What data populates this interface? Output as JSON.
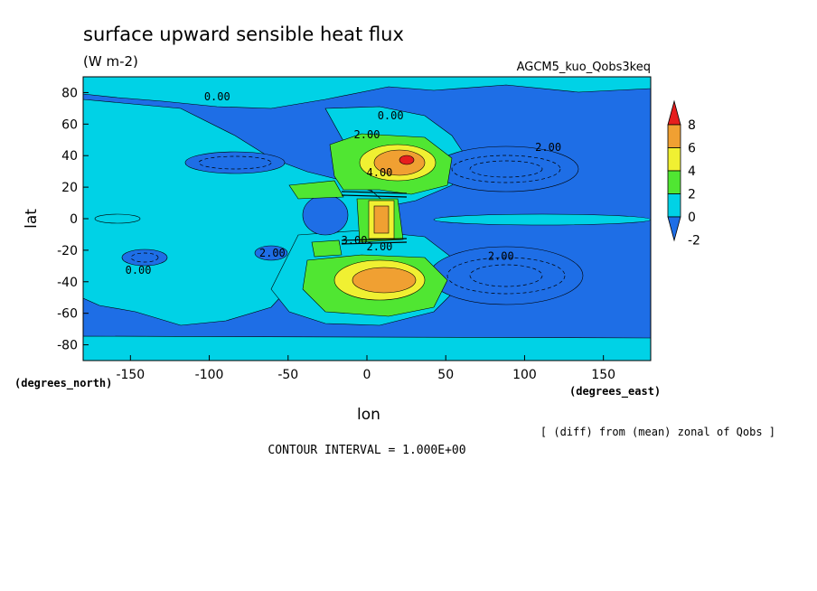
{
  "chart_data": {
    "type": "heatmap",
    "title": "surface upward sensible heat flux",
    "subtitle": "(W m-2)",
    "run_label": "AGCM5_kuo_Qobs3keq",
    "xlabel": "lon",
    "ylabel": "lat",
    "x_units": "(degrees_east)",
    "y_units": "(degrees_north)",
    "xlim": [
      -180,
      180
    ],
    "ylim": [
      -90,
      90
    ],
    "x_ticks": [
      -150,
      -100,
      -50,
      0,
      50,
      100,
      150
    ],
    "x_tick_labels": [
      "-150",
      "-100",
      "-50",
      "0",
      "50",
      "100",
      "150"
    ],
    "y_ticks": [
      80,
      60,
      40,
      20,
      0,
      -20,
      -40,
      -60,
      -80
    ],
    "y_tick_labels": [
      "80",
      "60",
      "40",
      "20",
      "0",
      "-20",
      "-40",
      "-60",
      "-80"
    ],
    "colorbar": {
      "levels": [
        -2,
        0,
        2,
        4,
        6,
        8
      ],
      "level_labels": [
        "-2",
        "0",
        "2",
        "4",
        "6",
        "8"
      ],
      "colors": [
        "#1e6ee6",
        "#00d2e6",
        "#50e632",
        "#f0f032",
        "#f0a032",
        "#e61e1e"
      ]
    },
    "contour_labels": [
      {
        "text": "0.00",
        "lon": -95,
        "lat": 75
      },
      {
        "text": "0.00",
        "lon": 15,
        "lat": 63
      },
      {
        "text": "2.00",
        "lon": 0,
        "lat": 51
      },
      {
        "text": "2.00",
        "lon": 115,
        "lat": 43
      },
      {
        "text": "4.00",
        "lon": 8,
        "lat": 27
      },
      {
        "text": "2.00",
        "lon": -60,
        "lat": -24
      },
      {
        "text": "3.00",
        "lon": -8,
        "lat": -16
      },
      {
        "text": "2.00",
        "lon": 8,
        "lat": -20
      },
      {
        "text": "2.00",
        "lon": 85,
        "lat": -26
      },
      {
        "text": "0.00",
        "lon": -145,
        "lat": -35
      }
    ],
    "footer_note": "[ (diff) from (mean) zonal of Qobs ]",
    "contour_interval": "CONTOUR INTERVAL = 1.000E+00",
    "legend_position": "right",
    "grid": false
  }
}
